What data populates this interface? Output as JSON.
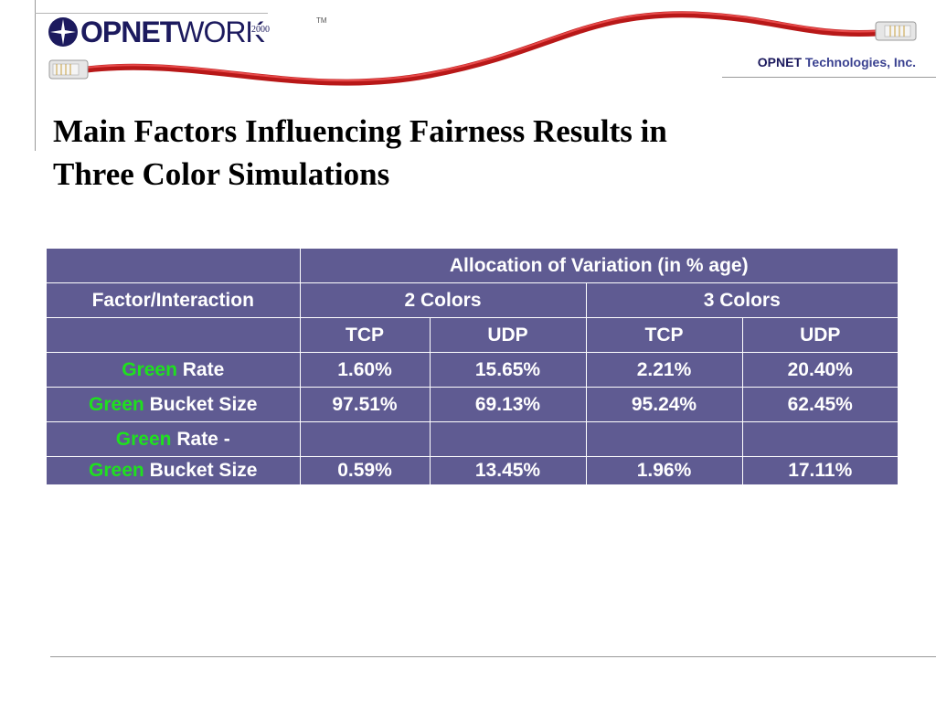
{
  "header": {
    "logo": {
      "op": "OP",
      "net": "NET",
      "work": "WORK",
      "year": "2000",
      "tm": "TM"
    },
    "company": {
      "brand": "OPNET",
      "rest": "Technologies, Inc."
    },
    "cable_color": "#d42222"
  },
  "slide": {
    "title_line1": "Main Factors Influencing Fairness Results in",
    "title_line2": "Three Color Simulations"
  },
  "table": {
    "header": "Allocation of Variation (in % age)",
    "factor_label": "Factor/Interaction",
    "groups": [
      "2 Colors",
      "3 Colors"
    ],
    "subcols": [
      "TCP",
      "UDP",
      "TCP",
      "UDP"
    ],
    "green_word": "Green",
    "rows": [
      {
        "label": "Rate",
        "values": [
          "1.60%",
          "15.65%",
          "2.21%",
          "20.40%"
        ]
      },
      {
        "label": "Bucket Size",
        "values": [
          "97.51%",
          "69.13%",
          "95.24%",
          "62.45%"
        ]
      },
      {
        "label_line1": "Rate -",
        "label_line2": "Bucket Size",
        "values": [
          "0.59%",
          "13.45%",
          "1.96%",
          "17.11%"
        ]
      }
    ]
  },
  "colors": {
    "table_bg": "#5f5b92",
    "green_text": "#1fe01f",
    "title": "#000000"
  }
}
